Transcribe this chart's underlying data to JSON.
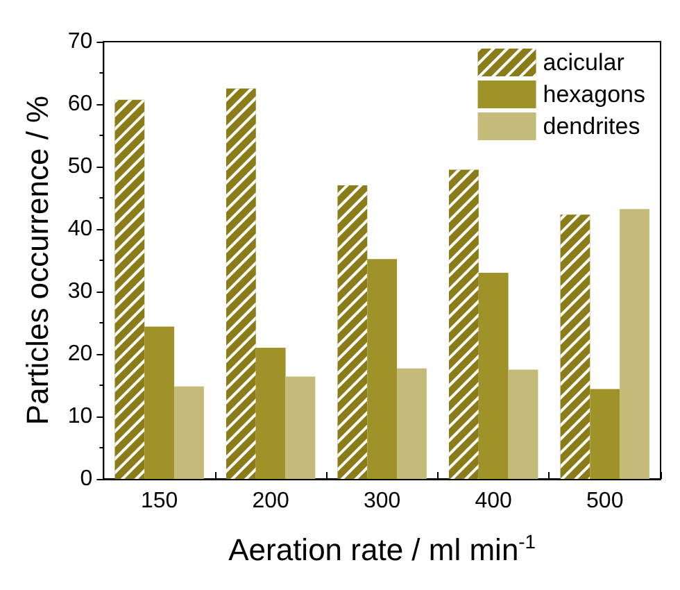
{
  "chart_data": {
    "type": "bar",
    "xlabel": "Aeration rate / ml min$^{-1}$",
    "ylabel": "Particles occurrence / %",
    "categories": [
      "150",
      "200",
      "300",
      "400",
      "500"
    ],
    "series": [
      {
        "name": "acicular",
        "color": "#8a7c18",
        "values": [
          60.7,
          62.5,
          47.0,
          49.5,
          42.3
        ]
      },
      {
        "name": "hexagons",
        "color": "#9e9228",
        "values": [
          24.4,
          21.0,
          35.2,
          33.0,
          14.4
        ]
      },
      {
        "name": "dendrites",
        "color": "#c4bb78",
        "values": [
          14.8,
          16.4,
          17.7,
          17.5,
          43.2
        ]
      }
    ],
    "ylim": [
      0,
      70
    ],
    "yticks": [
      0,
      10,
      20,
      30,
      40,
      50,
      60,
      70
    ],
    "grid": false,
    "legend": "top right"
  }
}
